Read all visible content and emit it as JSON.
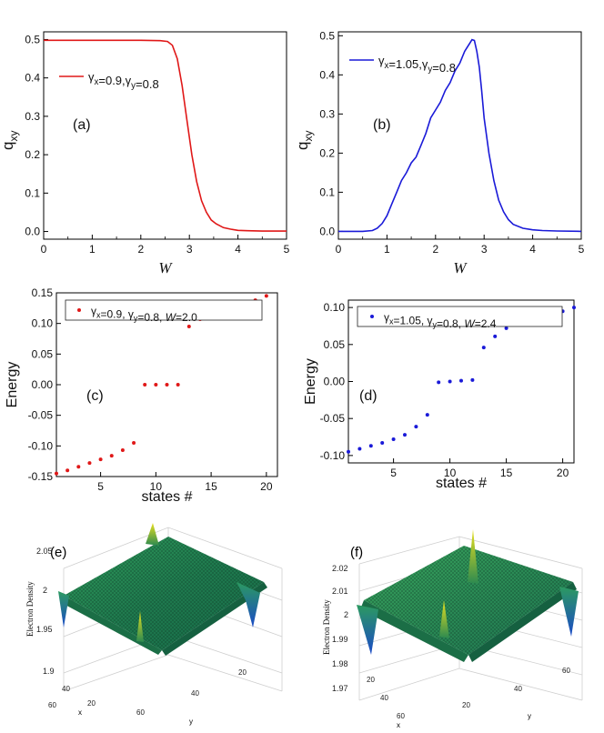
{
  "chart_data": [
    {
      "panel": "a",
      "type": "line",
      "panel_label": "(a)",
      "xlabel": "W",
      "ylabel_main": "q",
      "ylabel_sub": "xy",
      "xlim": [
        0,
        5
      ],
      "ylim": [
        -0.02,
        0.52
      ],
      "xticks": [
        "0",
        "1",
        "2",
        "3",
        "4",
        "5"
      ],
      "yticks": [
        "0.0",
        "0.1",
        "0.2",
        "0.3",
        "0.4",
        "0.5"
      ],
      "legend": "γx=0.9,γy=0.8",
      "color": "#e01818",
      "series": [
        {
          "x": [
            0,
            0.5,
            1,
            1.5,
            2,
            2.4,
            2.55,
            2.65,
            2.75,
            2.85,
            2.95,
            3.05,
            3.15,
            3.25,
            3.35,
            3.45,
            3.55,
            3.7,
            3.85,
            4.0,
            4.2,
            4.5,
            5.0
          ],
          "y": [
            0.498,
            0.498,
            0.498,
            0.498,
            0.498,
            0.497,
            0.495,
            0.485,
            0.45,
            0.38,
            0.29,
            0.2,
            0.13,
            0.08,
            0.05,
            0.03,
            0.02,
            0.01,
            0.006,
            0.003,
            0.002,
            0.001,
            0.001
          ]
        }
      ]
    },
    {
      "panel": "b",
      "type": "line",
      "panel_label": "(b)",
      "xlabel": "W",
      "ylabel_main": "q",
      "ylabel_sub": "xy",
      "xlim": [
        0,
        5
      ],
      "ylim": [
        -0.02,
        0.51
      ],
      "xticks": [
        "0",
        "1",
        "2",
        "3",
        "4",
        "5"
      ],
      "yticks": [
        "0.0",
        "0.1",
        "0.2",
        "0.3",
        "0.4",
        "0.5"
      ],
      "legend": "γx=1.05,γy=0.8",
      "color": "#1a1ad8",
      "series": [
        {
          "x": [
            0,
            0.5,
            0.7,
            0.8,
            0.9,
            1.0,
            1.1,
            1.2,
            1.3,
            1.4,
            1.5,
            1.6,
            1.7,
            1.8,
            1.9,
            2.0,
            2.1,
            2.2,
            2.3,
            2.4,
            2.5,
            2.6,
            2.65,
            2.7,
            2.75,
            2.8,
            2.85,
            2.9,
            2.95,
            3.0,
            3.1,
            3.2,
            3.3,
            3.4,
            3.5,
            3.6,
            3.8,
            4.0,
            4.2,
            4.5,
            5.0
          ],
          "y": [
            0.0,
            0.0,
            0.002,
            0.008,
            0.02,
            0.04,
            0.07,
            0.1,
            0.13,
            0.15,
            0.175,
            0.19,
            0.22,
            0.25,
            0.29,
            0.31,
            0.33,
            0.36,
            0.38,
            0.41,
            0.43,
            0.46,
            0.47,
            0.48,
            0.49,
            0.488,
            0.46,
            0.42,
            0.36,
            0.29,
            0.2,
            0.13,
            0.08,
            0.05,
            0.03,
            0.018,
            0.008,
            0.004,
            0.002,
            0.001,
            0.0
          ]
        }
      ]
    },
    {
      "panel": "c",
      "type": "scatter",
      "panel_label": "(c)",
      "xlabel": "states #",
      "ylabel": "Energy",
      "xlim": [
        1,
        21
      ],
      "ylim": [
        -0.15,
        0.15
      ],
      "xticks": [
        "5",
        "10",
        "15",
        "20"
      ],
      "yticks": [
        "-0.15",
        "-0.10",
        "-0.05",
        "0.00",
        "0.05",
        "0.10",
        "0.15"
      ],
      "legend": "γx=0.9, γy=0.8, W=2.0",
      "color": "#e01818",
      "series": [
        {
          "x": [
            1,
            2,
            3,
            4,
            5,
            6,
            7,
            8,
            9,
            10,
            11,
            12,
            13,
            14,
            15,
            16,
            17,
            18,
            19,
            20
          ],
          "y": [
            -0.145,
            -0.14,
            -0.134,
            -0.128,
            -0.122,
            -0.116,
            -0.107,
            -0.095,
            0.0,
            0.0,
            0.0,
            0.0,
            0.095,
            0.107,
            0.114,
            0.12,
            0.126,
            0.132,
            0.138,
            0.145
          ]
        }
      ]
    },
    {
      "panel": "d",
      "type": "scatter",
      "panel_label": "(d)",
      "xlabel": "states #",
      "ylabel": "Energy",
      "xlim": [
        1,
        21
      ],
      "ylim": [
        -0.11,
        0.11
      ],
      "xticks": [
        "5",
        "10",
        "15",
        "20"
      ],
      "yticks": [
        "-0.10",
        "-0.05",
        "0.00",
        "0.05",
        "0.10"
      ],
      "legend": "γx=1.05, γy=0.8, W=2.4",
      "color": "#1a1ad8",
      "series": [
        {
          "x": [
            1,
            2,
            3,
            4,
            5,
            6,
            7,
            8,
            9,
            10,
            11,
            12,
            13,
            14,
            15,
            16,
            17,
            18,
            19,
            20,
            21
          ],
          "y": [
            -0.095,
            -0.091,
            -0.087,
            -0.083,
            -0.078,
            -0.072,
            -0.061,
            -0.045,
            -0.001,
            0.0,
            0.001,
            0.002,
            0.046,
            0.061,
            0.072,
            0.078,
            0.083,
            0.087,
            0.091,
            0.095,
            0.1
          ]
        }
      ]
    },
    {
      "panel": "e",
      "type": "surface3d",
      "panel_label": "(e)",
      "zlabel": "Electron Density",
      "xlabel": "x",
      "ylabel": "y",
      "zticks": [
        "1.9",
        "1.95",
        "2",
        "2.05"
      ],
      "xticks": [
        "20",
        "40",
        "60"
      ],
      "yticks": [
        "60",
        "40",
        "20"
      ]
    },
    {
      "panel": "f",
      "type": "surface3d",
      "panel_label": "(f)",
      "zlabel": "Electron Density",
      "xlabel": "x",
      "ylabel": "y",
      "zticks": [
        "1.97",
        "1.98",
        "1.99",
        "2",
        "2.01",
        "2.02"
      ],
      "xticks": [
        "20",
        "40",
        "60"
      ],
      "yticks": [
        "20",
        "40",
        "60"
      ]
    }
  ]
}
